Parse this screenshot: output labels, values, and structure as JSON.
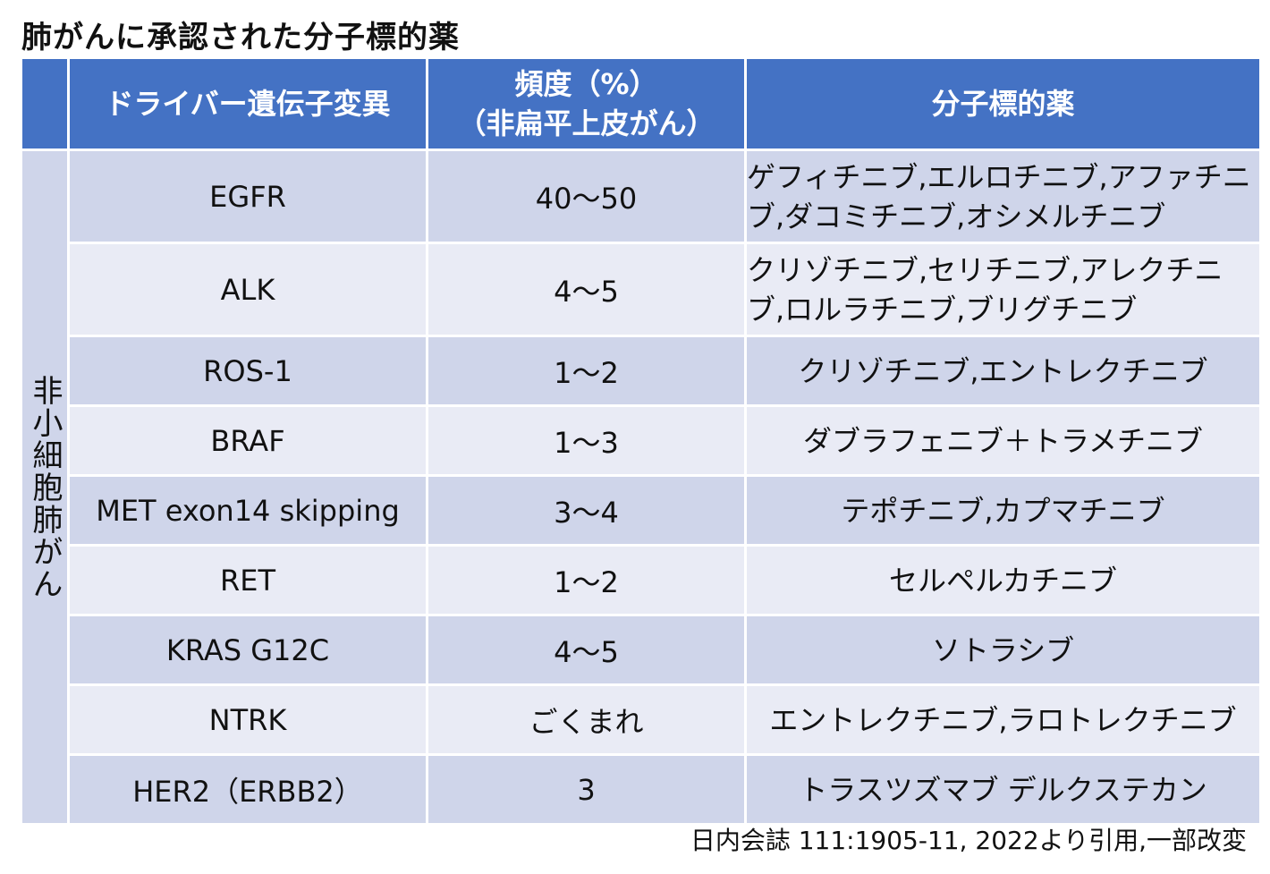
{
  "title": "肺がんに承認された分子標的薬",
  "table": {
    "headers": {
      "gene": "ドライバー遺伝子変異",
      "freq_line1": "頻度（%）",
      "freq_line2": "（非扁平上皮がん）",
      "drugs": "分子標的薬"
    },
    "group_label": "非小細胞肺がん",
    "rows": [
      {
        "gene": "EGFR",
        "freq": "40～50",
        "drugs": "ゲフィチニブ,エルロチニブ,アファチニブ,ダコミチニブ,オシメルチニブ"
      },
      {
        "gene": "ALK",
        "freq": "4～5",
        "drugs": "クリゾチニブ,セリチニブ,アレクチニブ,ロルラチニブ,ブリグチニブ"
      },
      {
        "gene": "ROS-1",
        "freq": "1～2",
        "drugs": "クリゾチニブ,エントレクチニブ"
      },
      {
        "gene": "BRAF",
        "freq": "1～3",
        "drugs": "ダブラフェニブ＋トラメチニブ"
      },
      {
        "gene": "MET exon14 skipping",
        "freq": "3～4",
        "drugs": "テポチニブ,カプマチニブ"
      },
      {
        "gene": "RET",
        "freq": "1～2",
        "drugs": "セルペルカチニブ"
      },
      {
        "gene": "KRAS G12C",
        "freq": "4～5",
        "drugs": "ソトラシブ"
      },
      {
        "gene": "NTRK",
        "freq": "ごくまれ",
        "drugs": "エントレクチニブ,ラロトレクチニブ"
      },
      {
        "gene": "HER2（ERBB2）",
        "freq": "3",
        "drugs": "トラスツズマブ デルクステカン"
      }
    ]
  },
  "citation": "日内会誌 111:1905-11, 2022より引用,一部改変",
  "colors": {
    "header_bg": "#4472c4",
    "row_dark": "#cfd5ea",
    "row_light": "#e9ebf5"
  }
}
